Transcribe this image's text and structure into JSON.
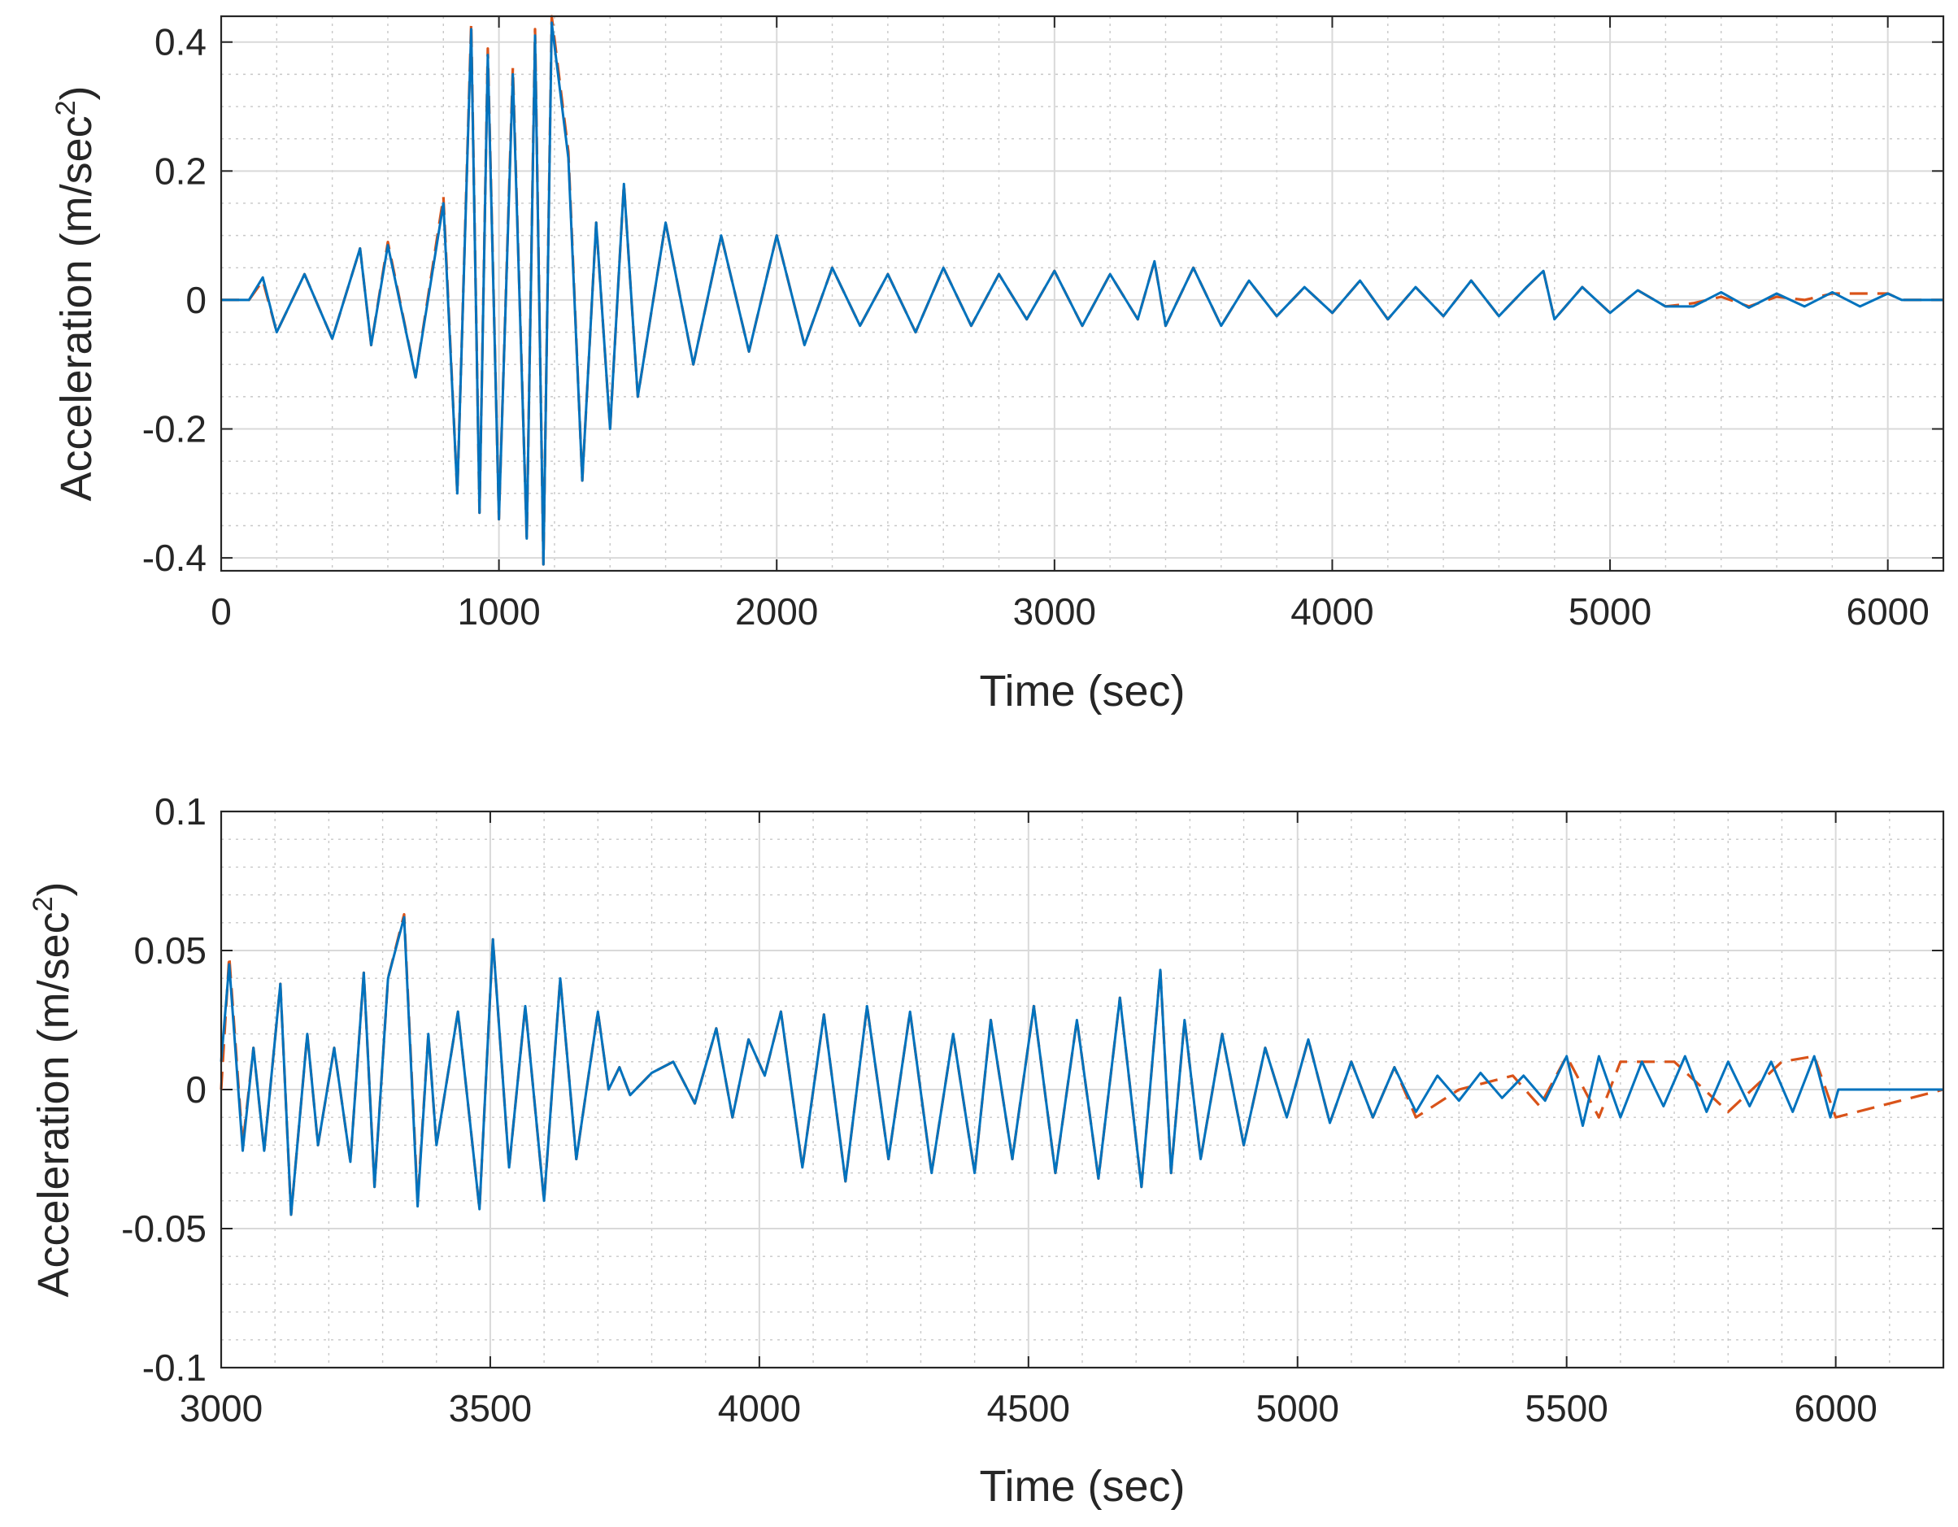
{
  "chart_data": [
    {
      "type": "line",
      "xlabel": "Time (sec)",
      "ylabel": "Acceleration (m/sec",
      "ylabel_sup": "2",
      "ylabel_close": ")",
      "xlim": [
        0,
        6200
      ],
      "ylim": [
        -0.42,
        0.44
      ],
      "xticks": [
        0,
        1000,
        2000,
        3000,
        4000,
        5000,
        6000
      ],
      "xtick_labels": [
        "0",
        "1000",
        "2000",
        "3000",
        "4000",
        "5000",
        "6000"
      ],
      "yticks": [
        -0.4,
        -0.2,
        0,
        0.2,
        0.4
      ],
      "ytick_labels": [
        "-0.4",
        "-0.2",
        "0",
        "0.2",
        "0.4"
      ],
      "x_minor_step": 200,
      "y_minor_step": 0.05,
      "grid": true,
      "series": [
        {
          "style": "dashed",
          "color": "#d95319",
          "x": [
            0,
            100,
            150,
            200,
            300,
            400,
            500,
            540,
            600,
            700,
            800,
            850,
            900,
            930,
            960,
            1000,
            1050,
            1100,
            1130,
            1160,
            1190,
            1250,
            1300,
            1350,
            1400,
            1450,
            1500,
            1600,
            1700,
            1800,
            1900,
            2000,
            2100,
            2200,
            2300,
            2400,
            2500,
            2600,
            2700,
            2800,
            2900,
            3000,
            3100,
            3200,
            3300,
            3360,
            3400,
            3500,
            3600,
            3700,
            3800,
            3900,
            4000,
            4100,
            4200,
            4300,
            4400,
            4500,
            4600,
            4700,
            4760,
            4800,
            4900,
            5000,
            5100,
            5200,
            5300,
            5400,
            5500,
            5600,
            5700,
            5800,
            5900,
            6000,
            6050,
            6200
          ],
          "y": [
            0,
            0,
            0.03,
            -0.05,
            0.04,
            -0.06,
            0.08,
            -0.07,
            0.09,
            -0.12,
            0.16,
            -0.3,
            0.43,
            -0.33,
            0.39,
            -0.34,
            0.36,
            -0.37,
            0.42,
            -0.41,
            0.44,
            0.23,
            -0.28,
            0.12,
            -0.2,
            0.18,
            -0.15,
            0.12,
            -0.1,
            0.1,
            -0.08,
            0.1,
            -0.07,
            0.05,
            -0.04,
            0.04,
            -0.05,
            0.05,
            -0.04,
            0.04,
            -0.03,
            0.045,
            -0.04,
            0.04,
            -0.03,
            0.06,
            -0.04,
            0.05,
            -0.04,
            0.03,
            -0.025,
            0.02,
            -0.02,
            0.03,
            -0.03,
            0.02,
            -0.025,
            0.03,
            -0.025,
            0.02,
            0.045,
            -0.03,
            0.02,
            -0.02,
            0.015,
            -0.01,
            -0.005,
            0.005,
            -0.01,
            0.005,
            0.0,
            0.01,
            0.01,
            0.01,
            0,
            0
          ]
        },
        {
          "style": "solid",
          "color": "#0072bd",
          "x": [
            0,
            100,
            150,
            200,
            300,
            400,
            500,
            540,
            600,
            700,
            800,
            850,
            900,
            930,
            960,
            1000,
            1050,
            1100,
            1130,
            1160,
            1190,
            1250,
            1300,
            1350,
            1400,
            1450,
            1500,
            1600,
            1700,
            1800,
            1900,
            2000,
            2100,
            2200,
            2300,
            2400,
            2500,
            2600,
            2700,
            2800,
            2900,
            3000,
            3100,
            3200,
            3300,
            3360,
            3400,
            3500,
            3600,
            3700,
            3800,
            3900,
            4000,
            4100,
            4200,
            4300,
            4400,
            4500,
            4600,
            4700,
            4760,
            4800,
            4900,
            5000,
            5100,
            5200,
            5300,
            5400,
            5500,
            5600,
            5700,
            5800,
            5900,
            6000,
            6050,
            6200
          ],
          "y": [
            0,
            0,
            0.035,
            -0.05,
            0.04,
            -0.06,
            0.08,
            -0.07,
            0.085,
            -0.12,
            0.15,
            -0.3,
            0.42,
            -0.33,
            0.38,
            -0.34,
            0.35,
            -0.37,
            0.41,
            -0.41,
            0.43,
            0.22,
            -0.28,
            0.12,
            -0.2,
            0.18,
            -0.15,
            0.12,
            -0.1,
            0.1,
            -0.08,
            0.1,
            -0.07,
            0.05,
            -0.04,
            0.04,
            -0.05,
            0.05,
            -0.04,
            0.04,
            -0.03,
            0.045,
            -0.04,
            0.04,
            -0.03,
            0.06,
            -0.04,
            0.05,
            -0.04,
            0.03,
            -0.025,
            0.02,
            -0.02,
            0.03,
            -0.03,
            0.02,
            -0.025,
            0.03,
            -0.025,
            0.02,
            0.045,
            -0.03,
            0.02,
            -0.02,
            0.015,
            -0.01,
            -0.01,
            0.012,
            -0.012,
            0.01,
            -0.01,
            0.012,
            -0.01,
            0.01,
            0,
            0
          ]
        }
      ]
    },
    {
      "type": "line",
      "xlabel": "Time (sec)",
      "ylabel": "Acceleration (m/sec",
      "ylabel_sup": "2",
      "ylabel_close": ")",
      "xlim": [
        3000,
        6200
      ],
      "ylim": [
        -0.1,
        0.1
      ],
      "xticks": [
        3000,
        3500,
        4000,
        4500,
        5000,
        5500,
        6000
      ],
      "xtick_labels": [
        "3000",
        "3500",
        "4000",
        "4500",
        "5000",
        "5500",
        "6000"
      ],
      "yticks": [
        -0.1,
        -0.05,
        0,
        0.05,
        0.1
      ],
      "ytick_labels": [
        "-0.1",
        "-0.05",
        "0",
        "0.05",
        "0.1"
      ],
      "x_minor_step": 100,
      "y_minor_step": 0.01,
      "grid": true,
      "series": [
        {
          "style": "dashed",
          "color": "#d95319",
          "x": [
            3000,
            3015,
            3040,
            3060,
            3080,
            3110,
            3130,
            3160,
            3180,
            3210,
            3240,
            3265,
            3285,
            3310,
            3340,
            3365,
            3385,
            3400,
            3440,
            3480,
            3505,
            3535,
            3565,
            3600,
            3630,
            3660,
            3700,
            3720,
            3740,
            3760,
            3800,
            3840,
            3880,
            3920,
            3950,
            3980,
            4010,
            4040,
            4080,
            4120,
            4160,
            4200,
            4240,
            4280,
            4320,
            4360,
            4400,
            4430,
            4470,
            4510,
            4550,
            4590,
            4630,
            4670,
            4710,
            4745,
            4765,
            4790,
            4820,
            4860,
            4900,
            4940,
            4980,
            5020,
            5060,
            5100,
            5140,
            5180,
            5220,
            5300,
            5400,
            5450,
            5500,
            5560,
            5600,
            5700,
            5800,
            5900,
            5960,
            6000,
            6200
          ],
          "y": [
            0,
            0.048,
            -0.02,
            0.015,
            -0.022,
            0.038,
            -0.045,
            0.02,
            -0.02,
            0.015,
            -0.026,
            0.042,
            -0.035,
            0.04,
            0.063,
            -0.04,
            0.02,
            -0.02,
            0.028,
            -0.043,
            0.054,
            -0.028,
            0.03,
            -0.04,
            0.04,
            -0.025,
            0.028,
            0.0,
            0.008,
            -0.002,
            0.006,
            0.01,
            -0.005,
            0.022,
            -0.01,
            0.018,
            0.005,
            0.028,
            -0.028,
            0.027,
            -0.033,
            0.03,
            -0.025,
            0.028,
            -0.03,
            0.02,
            -0.03,
            0.025,
            -0.025,
            0.03,
            -0.03,
            0.025,
            -0.032,
            0.033,
            -0.035,
            0.043,
            -0.03,
            0.025,
            -0.025,
            0.02,
            -0.02,
            0.015,
            -0.01,
            0.018,
            -0.012,
            0.01,
            -0.01,
            0.008,
            -0.01,
            0.0,
            0.005,
            -0.006,
            0.012,
            -0.01,
            0.01,
            0.01,
            -0.008,
            0.01,
            0.012,
            -0.01,
            0
          ]
        },
        {
          "style": "solid",
          "color": "#0072bd",
          "x": [
            3000,
            3015,
            3040,
            3060,
            3080,
            3110,
            3130,
            3160,
            3180,
            3210,
            3240,
            3265,
            3285,
            3310,
            3340,
            3365,
            3385,
            3400,
            3440,
            3480,
            3505,
            3535,
            3565,
            3600,
            3630,
            3660,
            3700,
            3720,
            3740,
            3760,
            3800,
            3840,
            3880,
            3920,
            3950,
            3980,
            4010,
            4040,
            4080,
            4120,
            4160,
            4200,
            4240,
            4280,
            4320,
            4360,
            4400,
            4430,
            4470,
            4510,
            4550,
            4590,
            4630,
            4670,
            4710,
            4745,
            4765,
            4790,
            4820,
            4860,
            4900,
            4940,
            4980,
            5020,
            5060,
            5100,
            5140,
            5180,
            5220,
            5260,
            5300,
            5340,
            5380,
            5420,
            5460,
            5500,
            5530,
            5560,
            5600,
            5640,
            5680,
            5720,
            5760,
            5800,
            5840,
            5880,
            5920,
            5960,
            5990,
            6005,
            6200
          ],
          "y": [
            0.01,
            0.045,
            -0.022,
            0.015,
            -0.022,
            0.038,
            -0.045,
            0.02,
            -0.02,
            0.015,
            -0.026,
            0.042,
            -0.035,
            0.04,
            0.062,
            -0.042,
            0.02,
            -0.02,
            0.028,
            -0.043,
            0.054,
            -0.028,
            0.03,
            -0.04,
            0.04,
            -0.025,
            0.028,
            0.0,
            0.008,
            -0.002,
            0.006,
            0.01,
            -0.005,
            0.022,
            -0.01,
            0.018,
            0.005,
            0.028,
            -0.028,
            0.027,
            -0.033,
            0.03,
            -0.025,
            0.028,
            -0.03,
            0.02,
            -0.03,
            0.025,
            -0.025,
            0.03,
            -0.03,
            0.025,
            -0.032,
            0.033,
            -0.035,
            0.043,
            -0.03,
            0.025,
            -0.025,
            0.02,
            -0.02,
            0.015,
            -0.01,
            0.018,
            -0.012,
            0.01,
            -0.01,
            0.008,
            -0.008,
            0.005,
            -0.004,
            0.006,
            -0.003,
            0.005,
            -0.004,
            0.012,
            -0.013,
            0.012,
            -0.01,
            0.01,
            -0.006,
            0.012,
            -0.008,
            0.01,
            -0.006,
            0.01,
            -0.008,
            0.012,
            -0.01,
            0,
            0
          ]
        }
      ]
    }
  ]
}
